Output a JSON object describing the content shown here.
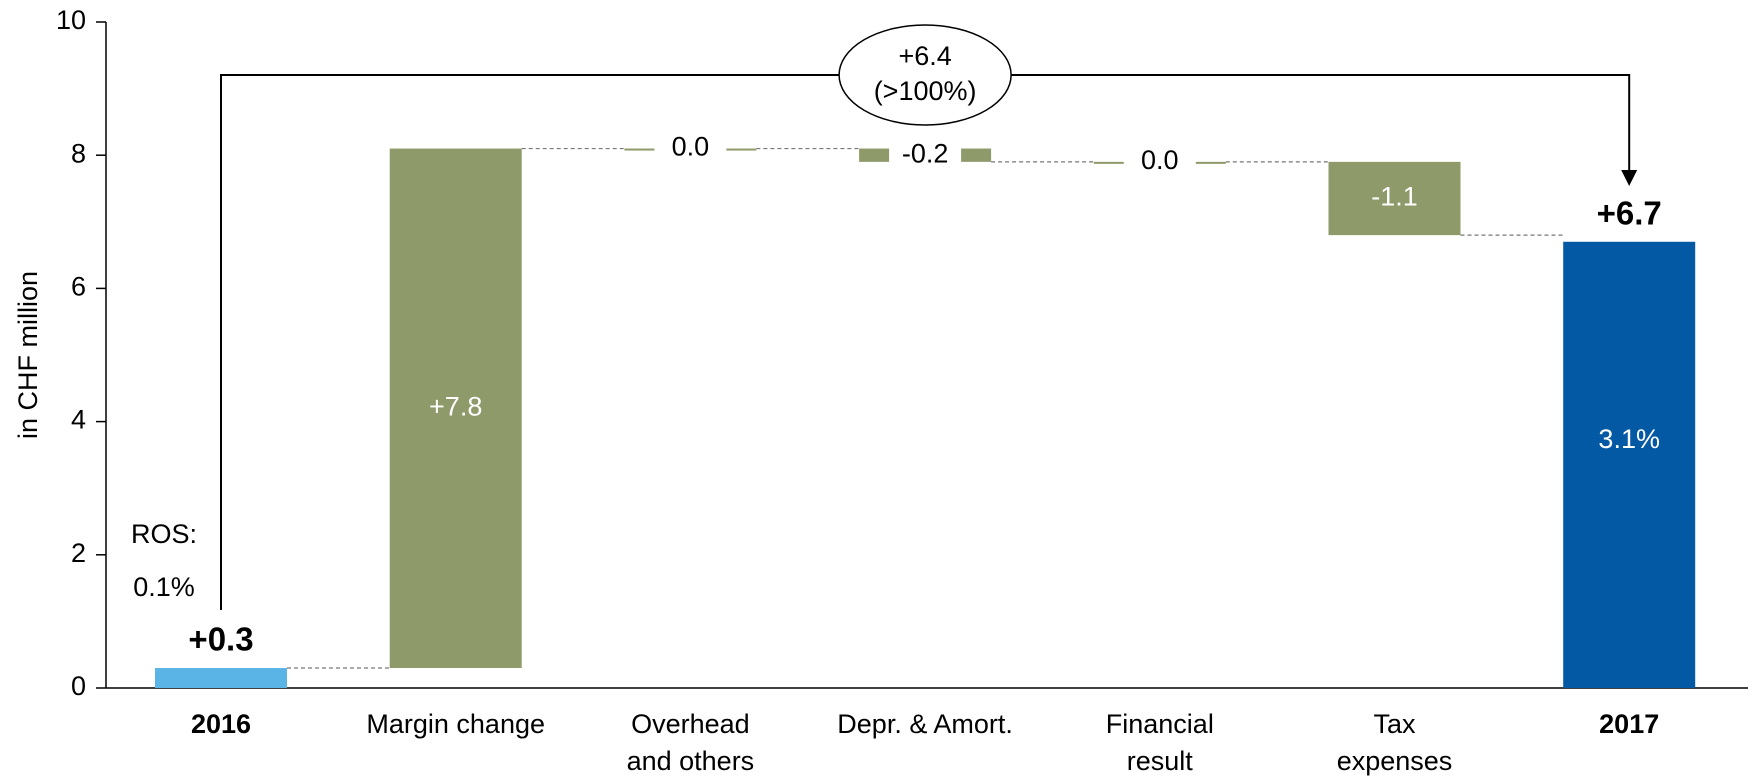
{
  "chart_data": {
    "type": "waterfall",
    "y_label": "in CHF million",
    "categories": [
      "2016",
      "Margin change",
      "Overhead\nand others",
      "Depr. & Amort.",
      "Financial\nresult",
      "Tax\nexpenses",
      "2017"
    ],
    "values": [
      0.3,
      7.8,
      0.0,
      -0.2,
      0.0,
      -1.1,
      6.7
    ],
    "value_labels": [
      "+0.3",
      "+7.8",
      "0.0",
      "-0.2",
      "0.0",
      "-1.1",
      "+6.7"
    ],
    "colors": [
      "#5bb4e6",
      "#8f9a6b",
      "#8f9a6b",
      "#8f9a6b",
      "#8f9a6b",
      "#8f9a6b",
      "#0459a4"
    ],
    "ylim": [
      0,
      10
    ],
    "yticks": [
      0,
      2,
      4,
      6,
      8,
      10
    ],
    "annotations": {
      "ros_label": "ROS:",
      "ros_2016": "0.1%",
      "ros_2017": "3.1%",
      "bracket_value": "+6.4",
      "bracket_pct": "(>100%)"
    }
  }
}
